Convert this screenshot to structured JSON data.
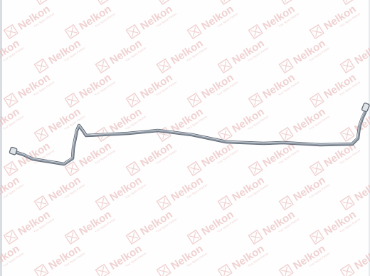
{
  "image": {
    "subject": "brake-pipe",
    "watermark": {
      "brand": "Nelkon",
      "tagline": "Your Spare Partner",
      "color": "#e8b7b7"
    },
    "pipe": {
      "color": "#8f99a5",
      "highlight": "#dfe4e9",
      "shadow": "#5f6873"
    }
  }
}
